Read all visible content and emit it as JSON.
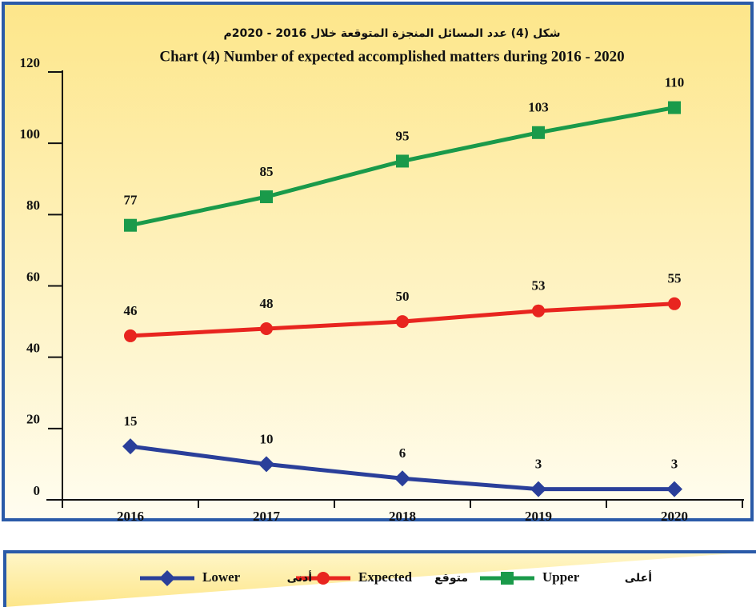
{
  "chart_data": {
    "type": "line",
    "title_ar": "شكل (4) عدد المسائل المنجزة المتوقعة خلال 2016 - 2020م",
    "title": "Chart (4) Number of expected accomplished matters during 2016 - 2020",
    "categories": [
      "2016",
      "2017",
      "2018",
      "2019",
      "2020"
    ],
    "series": [
      {
        "name": "Upper",
        "name_ar": "أعلى",
        "color": "#1a9a4a",
        "marker": "square",
        "values": [
          77,
          85,
          95,
          103,
          110
        ]
      },
      {
        "name": "Expected",
        "name_ar": "متوقع",
        "color": "#e8251f",
        "marker": "circle",
        "values": [
          46,
          48,
          50,
          53,
          55
        ]
      },
      {
        "name": "Lower",
        "name_ar": "أدنى",
        "color": "#2a3f9a",
        "marker": "diamond",
        "values": [
          15,
          10,
          6,
          3,
          3
        ]
      }
    ],
    "ylim": [
      0,
      120
    ],
    "yticks": [
      0,
      20,
      40,
      60,
      80,
      100,
      120
    ],
    "grid": false
  }
}
